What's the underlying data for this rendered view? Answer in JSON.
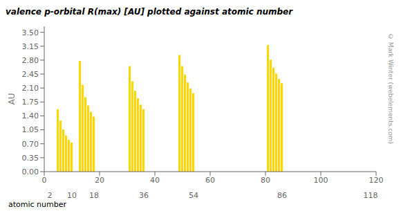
{
  "chart_data": {
    "type": "bar",
    "title": "valence p-orbital R(max) [AU] plotted against atomic number",
    "ylabel": "AU",
    "xlabel": "atomic number",
    "annotations": [
      "© Mark Winter (webelements.com)"
    ],
    "color": "#FFD700",
    "grid": false,
    "x": [
      5,
      6,
      7,
      8,
      9,
      10,
      13,
      14,
      15,
      16,
      17,
      18,
      31,
      32,
      33,
      34,
      35,
      36,
      49,
      50,
      51,
      52,
      53,
      54,
      81,
      82,
      83,
      84,
      85,
      86
    ],
    "values": [
      1.57,
      1.28,
      1.06,
      0.91,
      0.8,
      0.73,
      2.78,
      2.18,
      1.87,
      1.66,
      1.5,
      1.38,
      2.65,
      2.27,
      2.03,
      1.84,
      1.68,
      1.57,
      2.93,
      2.65,
      2.44,
      2.24,
      2.09,
      1.97,
      3.18,
      2.81,
      2.61,
      2.46,
      2.33,
      2.22
    ],
    "xlim": [
      0,
      120
    ],
    "xticks": [
      0,
      20,
      40,
      60,
      80,
      100,
      120
    ],
    "x2lim": [
      0,
      120
    ],
    "x2ticks": [
      2,
      10,
      18,
      36,
      54,
      86,
      118
    ],
    "ylim": [
      0,
      3.65
    ],
    "yticks": [
      {
        "value": 0,
        "label": "0.00"
      },
      {
        "value": 0.35,
        "label": "0.35"
      },
      {
        "value": 0.7,
        "label": "0.70"
      },
      {
        "value": 1.05,
        "label": "1.05"
      },
      {
        "value": 1.4,
        "label": "1.40"
      },
      {
        "value": 1.75,
        "label": "1.75"
      },
      {
        "value": 2.1,
        "label": "2.10"
      },
      {
        "value": 2.45,
        "label": "2.45"
      },
      {
        "value": 2.8,
        "label": "2.80"
      },
      {
        "value": 3.15,
        "label": "3.15"
      },
      {
        "value": 3.5,
        "label": "3.50"
      }
    ]
  }
}
